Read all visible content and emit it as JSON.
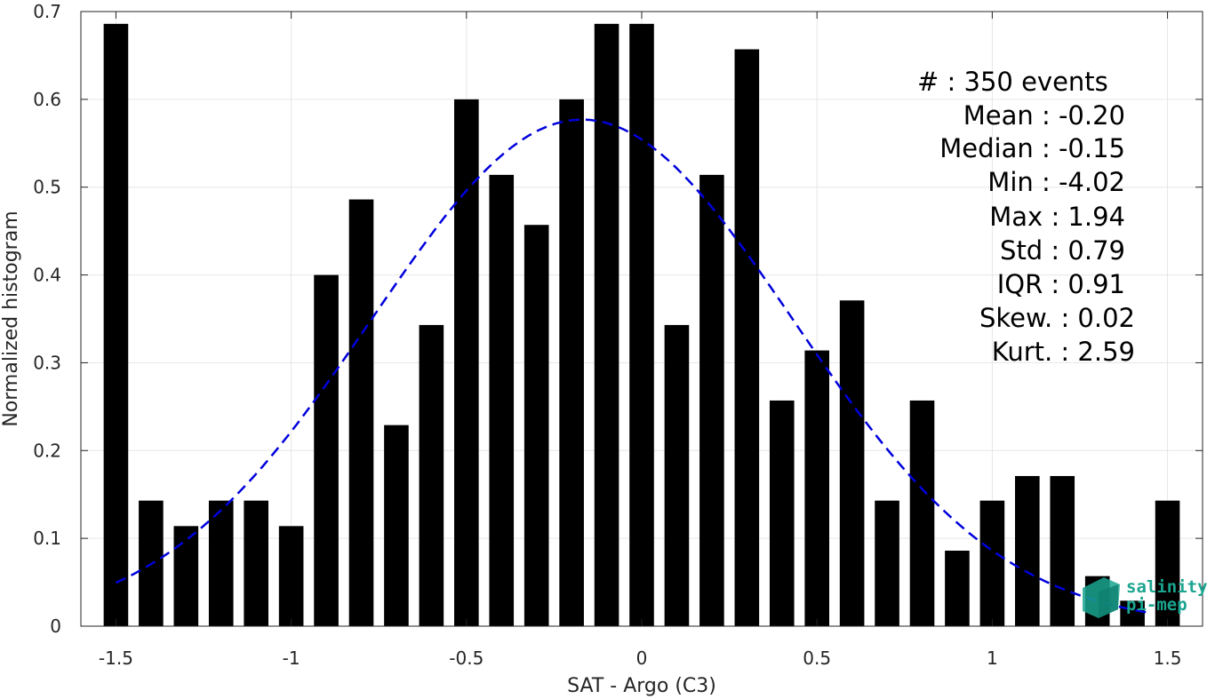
{
  "chart_data": {
    "type": "bar",
    "xlabel": "SAT - Argo (C3)",
    "ylabel": "Normalized histogram",
    "xlim": [
      -1.6,
      1.6
    ],
    "ylim": [
      0,
      0.7
    ],
    "x_ticks": [
      -1.5,
      -1,
      -0.5,
      0,
      0.5,
      1,
      1.5
    ],
    "x_tick_labels": [
      "-1.5",
      "-1",
      "-0.5",
      "0",
      "0.5",
      "1",
      "1.5"
    ],
    "y_ticks": [
      0,
      0.1,
      0.2,
      0.3,
      0.4,
      0.5,
      0.6,
      0.7
    ],
    "y_tick_labels": [
      "0",
      "0.1",
      "0.2",
      "0.3",
      "0.4",
      "0.5",
      "0.6",
      "0.7"
    ],
    "grid": true,
    "bar_width": 0.07,
    "bar_color": "#000000",
    "bins": [
      {
        "x": -1.5,
        "value": 0.686
      },
      {
        "x": -1.4,
        "value": 0.143
      },
      {
        "x": -1.3,
        "value": 0.114
      },
      {
        "x": -1.2,
        "value": 0.143
      },
      {
        "x": -1.1,
        "value": 0.143
      },
      {
        "x": -1.0,
        "value": 0.114
      },
      {
        "x": -0.9,
        "value": 0.4
      },
      {
        "x": -0.8,
        "value": 0.486
      },
      {
        "x": -0.7,
        "value": 0.229
      },
      {
        "x": -0.6,
        "value": 0.343
      },
      {
        "x": -0.5,
        "value": 0.6
      },
      {
        "x": -0.4,
        "value": 0.514
      },
      {
        "x": -0.3,
        "value": 0.457
      },
      {
        "x": -0.2,
        "value": 0.6
      },
      {
        "x": -0.1,
        "value": 0.686
      },
      {
        "x": 0.0,
        "value": 0.686
      },
      {
        "x": 0.1,
        "value": 0.343
      },
      {
        "x": 0.2,
        "value": 0.514
      },
      {
        "x": 0.3,
        "value": 0.657
      },
      {
        "x": 0.4,
        "value": 0.257
      },
      {
        "x": 0.5,
        "value": 0.314
      },
      {
        "x": 0.6,
        "value": 0.371
      },
      {
        "x": 0.7,
        "value": 0.143
      },
      {
        "x": 0.8,
        "value": 0.257
      },
      {
        "x": 0.9,
        "value": 0.086
      },
      {
        "x": 1.0,
        "value": 0.143
      },
      {
        "x": 1.1,
        "value": 0.171
      },
      {
        "x": 1.2,
        "value": 0.171
      },
      {
        "x": 1.3,
        "value": 0.057
      },
      {
        "x": 1.4,
        "value": 0.029
      },
      {
        "x": 1.5,
        "value": 0.143
      }
    ],
    "fit_curve": {
      "type": "gaussian",
      "mean": -0.17,
      "peak": 0.577,
      "sigma": 0.6,
      "x_range": [
        -1.5,
        1.45
      ],
      "color": "#0000dd",
      "style": "dashed"
    },
    "stats": [
      {
        "label": "#  ",
        "value": "350 events"
      },
      {
        "label": "Mean",
        "value": "-0.20"
      },
      {
        "label": "Median",
        "value": "-0.15"
      },
      {
        "label": "Min",
        "value": "-4.02"
      },
      {
        "label": "Max",
        "value": "1.94"
      },
      {
        "label": "Std",
        "value": "0.79"
      },
      {
        "label": "IQR",
        "value": "0.91"
      },
      {
        "label": "Skew.",
        "value": "0.02"
      },
      {
        "label": "Kurt.",
        "value": "2.59"
      }
    ]
  },
  "logo": {
    "line1": "salinity",
    "line2": "pi-mep",
    "color": "#1aa58f"
  }
}
